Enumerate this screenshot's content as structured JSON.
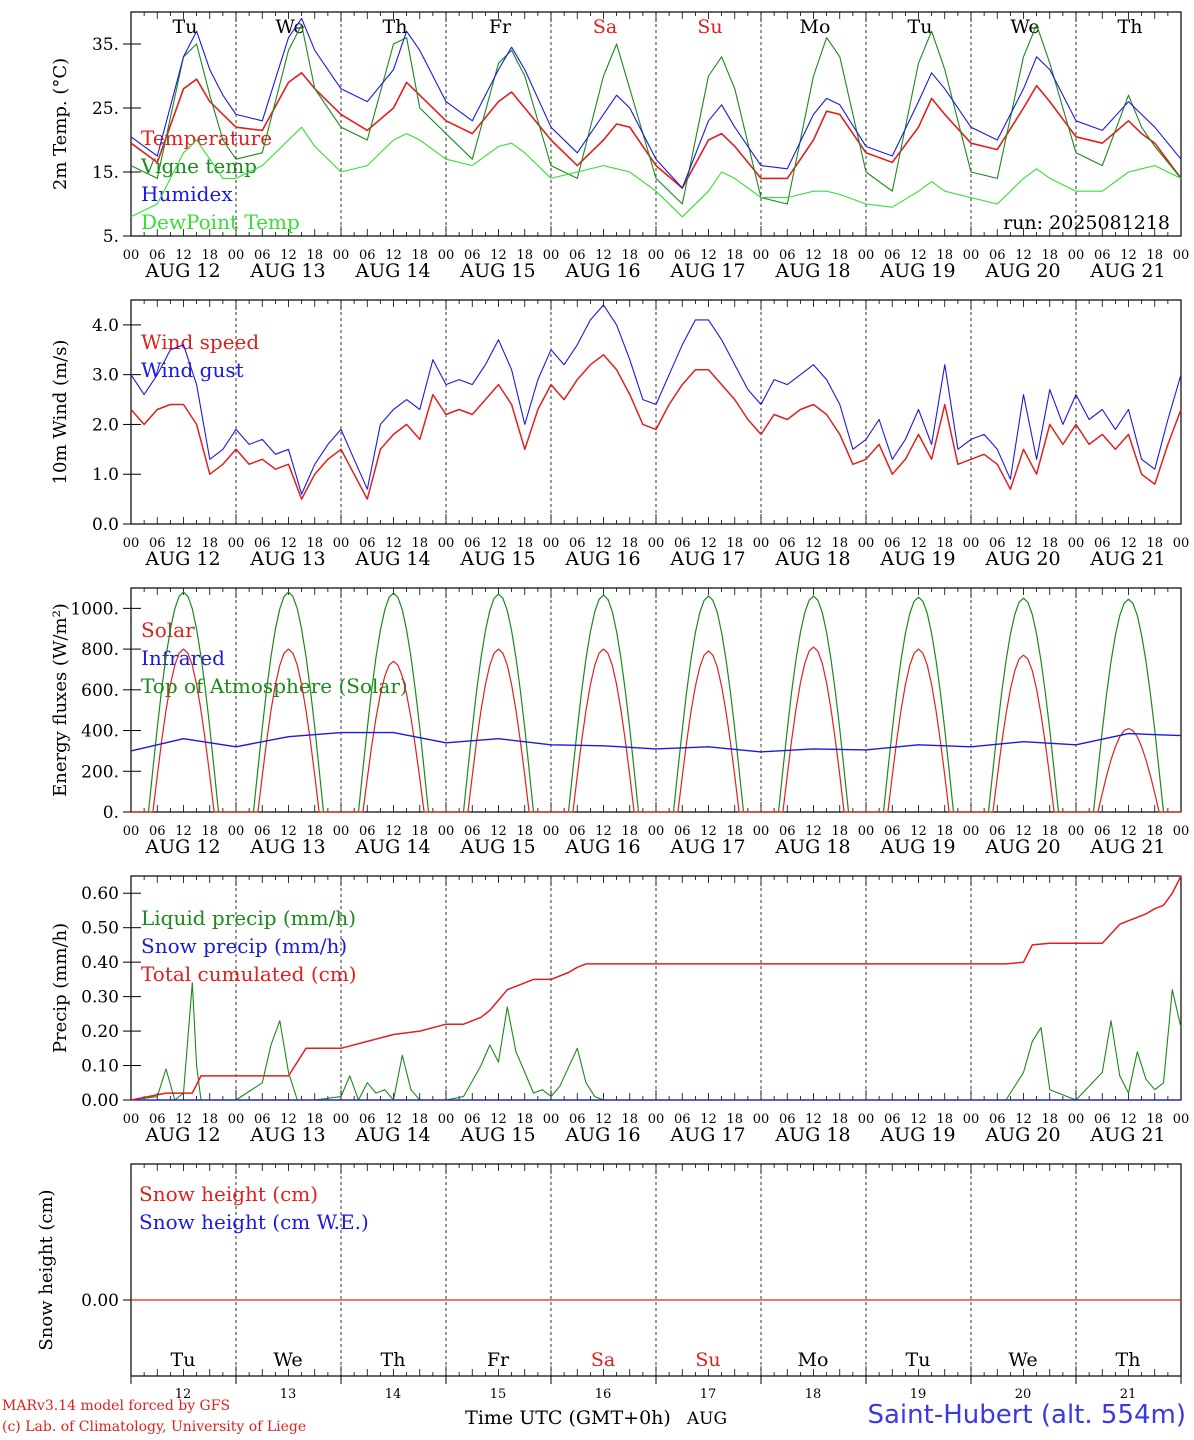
{
  "run_label": "run: 2025081218",
  "credits": [
    "MARv3.14 model forced by GFS",
    "(c) Lab. of Climatology, University of Liege"
  ],
  "station": "Saint-Hubert (alt. 554m)",
  "time_axis_label": "Time UTC (GMT+0h)",
  "month_label": "AUG",
  "days": [
    {
      "abbr": "Tu",
      "date": "AUG 12",
      "num": "12",
      "weekend": false
    },
    {
      "abbr": "We",
      "date": "AUG 13",
      "num": "13",
      "weekend": false
    },
    {
      "abbr": "Th",
      "date": "AUG 14",
      "num": "14",
      "weekend": false
    },
    {
      "abbr": "Fr",
      "date": "AUG 15",
      "num": "15",
      "weekend": false
    },
    {
      "abbr": "Sa",
      "date": "AUG 16",
      "num": "16",
      "weekend": true
    },
    {
      "abbr": "Su",
      "date": "AUG 17",
      "num": "17",
      "weekend": true
    },
    {
      "abbr": "Mo",
      "date": "AUG 18",
      "num": "18",
      "weekend": false
    },
    {
      "abbr": "Tu",
      "date": "AUG 19",
      "num": "19",
      "weekend": false
    },
    {
      "abbr": "We",
      "date": "AUG 20",
      "num": "20",
      "weekend": false
    },
    {
      "abbr": "Th",
      "date": "AUG 21",
      "num": "21",
      "weekend": false
    }
  ],
  "hour_ticks": [
    "00",
    "06",
    "12",
    "18"
  ],
  "final_hour": "00",
  "colors": {
    "red": "#e0201e",
    "green": "#1a8a1a",
    "blue": "#1a1ae0",
    "lightgreen": "#33e033",
    "weekend": "#e0201e",
    "grid": "#000000"
  },
  "chart_data": [
    {
      "type": "line",
      "ylabel": "2m Temp. (°C)",
      "ylim": [
        5,
        40
      ],
      "yticks": [
        {
          "v": 5,
          "label": "5."
        },
        {
          "v": 15,
          "label": "15."
        },
        {
          "v": 25,
          "label": "25."
        },
        {
          "v": 35,
          "label": "35."
        }
      ],
      "legend": [
        {
          "label": "Temperature",
          "color": "#e0201e"
        },
        {
          "label": "Vigne temp",
          "color": "#1a8a1a"
        },
        {
          "label": "Humidex",
          "color": "#1a1ae0"
        },
        {
          "label": "DewPoint Temp",
          "color": "#33e033"
        }
      ],
      "x_hours": [
        0,
        6,
        12,
        15,
        18,
        21,
        24,
        30,
        36,
        39,
        42,
        48,
        54,
        60,
        63,
        66,
        72,
        78,
        84,
        87,
        90,
        96,
        102,
        108,
        111,
        114,
        120,
        126,
        132,
        135,
        138,
        144,
        150,
        156,
        159,
        162,
        168,
        174,
        180,
        183,
        186,
        192,
        198,
        204,
        207,
        210,
        216,
        222,
        228,
        231,
        234,
        240
      ],
      "series": [
        {
          "name": "Temperature",
          "color": "#e0201e",
          "values": [
            19.5,
            16.5,
            28,
            29.5,
            26,
            24,
            22,
            21.5,
            29,
            30.5,
            28,
            24,
            21.5,
            25,
            29,
            27,
            23,
            21,
            26,
            27.5,
            25,
            20,
            16,
            20,
            22.5,
            22,
            16,
            12.5,
            20,
            21,
            19,
            14,
            14,
            20,
            24.5,
            24,
            18,
            16.5,
            22,
            26.5,
            24,
            19.5,
            18.5,
            25,
            28.5,
            26,
            20.5,
            19.5,
            23,
            21,
            19.5,
            14
          ]
        },
        {
          "name": "Vigne temp",
          "color": "#1a8a1a",
          "values": [
            16,
            14,
            33,
            35,
            27,
            20,
            17,
            18,
            34,
            38,
            28,
            22,
            20,
            35,
            36,
            25,
            21,
            17,
            32,
            34,
            30,
            16,
            14,
            30,
            35,
            28,
            14,
            10,
            30,
            33,
            28,
            11,
            10,
            30,
            36,
            33,
            15,
            12,
            32,
            37,
            31,
            15,
            14,
            33,
            38,
            32,
            18,
            16,
            27,
            22,
            19,
            14
          ]
        },
        {
          "name": "Humidex",
          "color": "#1a1ae0",
          "values": [
            20.5,
            17.5,
            33,
            37,
            31,
            27,
            24,
            23,
            36,
            39,
            34,
            28,
            26,
            31,
            37,
            34,
            26,
            23,
            31,
            34.5,
            31,
            22,
            18,
            24,
            27,
            25,
            17,
            12.5,
            23,
            25.5,
            22,
            16,
            15.5,
            24,
            26.5,
            25.5,
            19,
            17.5,
            26,
            30.5,
            28,
            22,
            20,
            28,
            33,
            31,
            23,
            21.5,
            26,
            24,
            22,
            17
          ]
        },
        {
          "name": "DewPoint Temp",
          "color": "#33e033",
          "values": [
            8,
            10,
            18,
            20,
            17,
            14,
            14,
            16,
            20,
            22,
            19,
            15,
            16,
            20,
            21,
            20,
            17,
            16,
            19,
            19.5,
            18,
            14,
            15,
            16,
            15.5,
            15,
            12,
            8,
            12,
            15,
            14,
            11,
            11,
            12,
            12,
            11.5,
            10,
            9.5,
            12,
            13.5,
            12,
            11,
            10,
            14,
            15.5,
            14,
            12,
            12,
            15,
            15.5,
            16,
            14
          ]
        }
      ]
    },
    {
      "type": "line",
      "ylabel": "10m Wind (m/s)",
      "ylim": [
        0,
        4.5
      ],
      "yticks": [
        {
          "v": 0,
          "label": "0.0"
        },
        {
          "v": 1,
          "label": "1.0"
        },
        {
          "v": 2,
          "label": "2.0"
        },
        {
          "v": 3,
          "label": "3.0"
        },
        {
          "v": 4,
          "label": "4.0"
        }
      ],
      "legend": [
        {
          "label": "Wind speed",
          "color": "#e0201e"
        },
        {
          "label": "Wind gust",
          "color": "#1a1ae0"
        }
      ],
      "x_hours": [
        0,
        3,
        6,
        9,
        12,
        15,
        18,
        21,
        24,
        27,
        30,
        33,
        36,
        39,
        42,
        45,
        48,
        51,
        54,
        57,
        60,
        63,
        66,
        69,
        72,
        75,
        78,
        81,
        84,
        87,
        90,
        93,
        96,
        99,
        102,
        105,
        108,
        111,
        114,
        117,
        120,
        123,
        126,
        129,
        132,
        135,
        138,
        141,
        144,
        147,
        150,
        153,
        156,
        159,
        162,
        165,
        168,
        171,
        174,
        177,
        180,
        183,
        186,
        189,
        192,
        195,
        198,
        201,
        204,
        207,
        210,
        213,
        216,
        219,
        222,
        225,
        228,
        231,
        234,
        237,
        240
      ],
      "series": [
        {
          "name": "Wind speed",
          "color": "#e0201e",
          "values": [
            2.3,
            2.0,
            2.3,
            2.4,
            2.4,
            2.0,
            1.0,
            1.2,
            1.5,
            1.2,
            1.3,
            1.1,
            1.2,
            0.5,
            1.0,
            1.3,
            1.5,
            1.0,
            0.5,
            1.5,
            1.8,
            2.0,
            1.7,
            2.6,
            2.2,
            2.3,
            2.2,
            2.5,
            2.8,
            2.4,
            1.5,
            2.3,
            2.8,
            2.5,
            2.9,
            3.2,
            3.4,
            3.1,
            2.6,
            2.0,
            1.9,
            2.4,
            2.8,
            3.1,
            3.1,
            2.8,
            2.5,
            2.1,
            1.8,
            2.2,
            2.1,
            2.3,
            2.4,
            2.2,
            1.8,
            1.2,
            1.3,
            1.6,
            1.0,
            1.3,
            1.8,
            1.3,
            2.4,
            1.2,
            1.3,
            1.4,
            1.2,
            0.7,
            1.5,
            1.0,
            2.0,
            1.6,
            2.0,
            1.6,
            1.8,
            1.5,
            1.8,
            1.0,
            0.8,
            1.6,
            2.3
          ]
        },
        {
          "name": "Wind gust",
          "color": "#1a1ae0",
          "values": [
            3.0,
            2.6,
            3.0,
            3.5,
            3.6,
            2.8,
            1.3,
            1.5,
            1.9,
            1.6,
            1.7,
            1.4,
            1.5,
            0.6,
            1.2,
            1.6,
            1.9,
            1.3,
            0.7,
            2.0,
            2.3,
            2.5,
            2.3,
            3.3,
            2.8,
            2.9,
            2.8,
            3.2,
            3.7,
            3.1,
            2.0,
            2.9,
            3.5,
            3.2,
            3.6,
            4.1,
            4.4,
            4.0,
            3.3,
            2.5,
            2.4,
            3.0,
            3.6,
            4.1,
            4.1,
            3.7,
            3.2,
            2.7,
            2.4,
            2.9,
            2.8,
            3.0,
            3.2,
            2.9,
            2.4,
            1.5,
            1.7,
            2.1,
            1.3,
            1.7,
            2.3,
            1.6,
            3.2,
            1.5,
            1.7,
            1.8,
            1.5,
            0.9,
            2.6,
            1.3,
            2.7,
            2.0,
            2.6,
            2.1,
            2.3,
            1.9,
            2.3,
            1.3,
            1.1,
            2.1,
            3.0
          ]
        }
      ]
    },
    {
      "type": "line",
      "ylabel": "Energy fluxes (W/m²)",
      "ylim": [
        0,
        1100
      ],
      "yticks": [
        {
          "v": 0,
          "label": "0."
        },
        {
          "v": 200,
          "label": "200."
        },
        {
          "v": 400,
          "label": "400."
        },
        {
          "v": 600,
          "label": "600."
        },
        {
          "v": 800,
          "label": "800."
        },
        {
          "v": 1000,
          "label": "1000."
        }
      ],
      "legend": [
        {
          "label": "Solar",
          "color": "#e0201e"
        },
        {
          "label": "Infrared",
          "color": "#1a1ae0"
        },
        {
          "label": "Top of Atmosphere (Solar)",
          "color": "#1a8a1a"
        }
      ],
      "solar_peaks": [
        800,
        800,
        740,
        800,
        800,
        790,
        810,
        800,
        770,
        410
      ],
      "toa_peaks": [
        1080,
        1080,
        1075,
        1070,
        1065,
        1060,
        1060,
        1055,
        1050,
        1045
      ],
      "infrared_x": [
        0,
        12,
        24,
        36,
        48,
        60,
        72,
        84,
        96,
        108,
        120,
        132,
        144,
        156,
        168,
        180,
        192,
        204,
        216,
        228,
        240
      ],
      "infrared_values": [
        300,
        360,
        320,
        370,
        390,
        390,
        340,
        360,
        330,
        325,
        310,
        320,
        295,
        310,
        305,
        330,
        320,
        345,
        330,
        385,
        375
      ]
    },
    {
      "type": "line",
      "ylabel": "Precip (mm/h)",
      "ylim": [
        0,
        0.65
      ],
      "yticks": [
        {
          "v": 0,
          "label": "0.00"
        },
        {
          "v": 0.1,
          "label": "0.10"
        },
        {
          "v": 0.2,
          "label": "0.20"
        },
        {
          "v": 0.3,
          "label": "0.30"
        },
        {
          "v": 0.4,
          "label": "0.40"
        },
        {
          "v": 0.5,
          "label": "0.50"
        },
        {
          "v": 0.6,
          "label": "0.60"
        }
      ],
      "legend": [
        {
          "label": "Liquid precip (mm/h)",
          "color": "#1a8a1a"
        },
        {
          "label": "Snow precip (mm/h)",
          "color": "#1a1ae0"
        },
        {
          "label": "Total cumulated (cm)",
          "color": "#e0201e"
        }
      ],
      "liquid_x": [
        0,
        6,
        8,
        10,
        12,
        14,
        15,
        16,
        18,
        24,
        30,
        32,
        34,
        36,
        38,
        42,
        48,
        50,
        52,
        54,
        56,
        58,
        60,
        62,
        64,
        66,
        68,
        70,
        72,
        76,
        80,
        82,
        84,
        86,
        88,
        90,
        92,
        94,
        96,
        98,
        102,
        104,
        106,
        108,
        150,
        200,
        204,
        206,
        208,
        210,
        216,
        222,
        224,
        226,
        228,
        230,
        232,
        234,
        236,
        238,
        240
      ],
      "liquid_values": [
        0,
        0.01,
        0.09,
        0.0,
        0.02,
        0.34,
        0.1,
        0,
        0,
        0,
        0.05,
        0.16,
        0.23,
        0.08,
        0,
        0,
        0.01,
        0.07,
        0.0,
        0.05,
        0.02,
        0.03,
        0.0,
        0.13,
        0.03,
        0,
        0,
        0,
        0,
        0.01,
        0.1,
        0.16,
        0.11,
        0.27,
        0.14,
        0.08,
        0.02,
        0.03,
        0.01,
        0.04,
        0.15,
        0.05,
        0.01,
        0,
        0,
        0,
        0.08,
        0.17,
        0.21,
        0.03,
        0,
        0.08,
        0.23,
        0.07,
        0.02,
        0.14,
        0.06,
        0.03,
        0.05,
        0.32,
        0.21
      ],
      "cumulative_x": [
        0,
        8,
        14,
        16,
        24,
        36,
        40,
        48,
        54,
        60,
        66,
        72,
        76,
        80,
        82,
        84,
        86,
        88,
        92,
        96,
        100,
        102,
        104,
        108,
        120,
        150,
        180,
        200,
        204,
        206,
        210,
        216,
        222,
        226,
        232,
        234,
        236,
        238,
        240
      ],
      "cumulative_values": [
        0,
        0.02,
        0.02,
        0.07,
        0.07,
        0.07,
        0.15,
        0.15,
        0.17,
        0.19,
        0.2,
        0.22,
        0.22,
        0.24,
        0.26,
        0.29,
        0.32,
        0.33,
        0.35,
        0.35,
        0.37,
        0.385,
        0.395,
        0.395,
        0.395,
        0.395,
        0.395,
        0.395,
        0.4,
        0.45,
        0.455,
        0.455,
        0.455,
        0.51,
        0.54,
        0.555,
        0.565,
        0.6,
        0.65
      ]
    },
    {
      "type": "line",
      "ylabel": "Snow height (cm)",
      "yticks": [
        {
          "v": 0,
          "label": "0.00"
        }
      ],
      "legend": [
        {
          "label": "Snow height (cm)",
          "color": "#e0201e"
        },
        {
          "label": "Snow height (cm W.E.)",
          "color": "#1a1ae0"
        }
      ],
      "values": [
        0,
        0
      ]
    }
  ]
}
